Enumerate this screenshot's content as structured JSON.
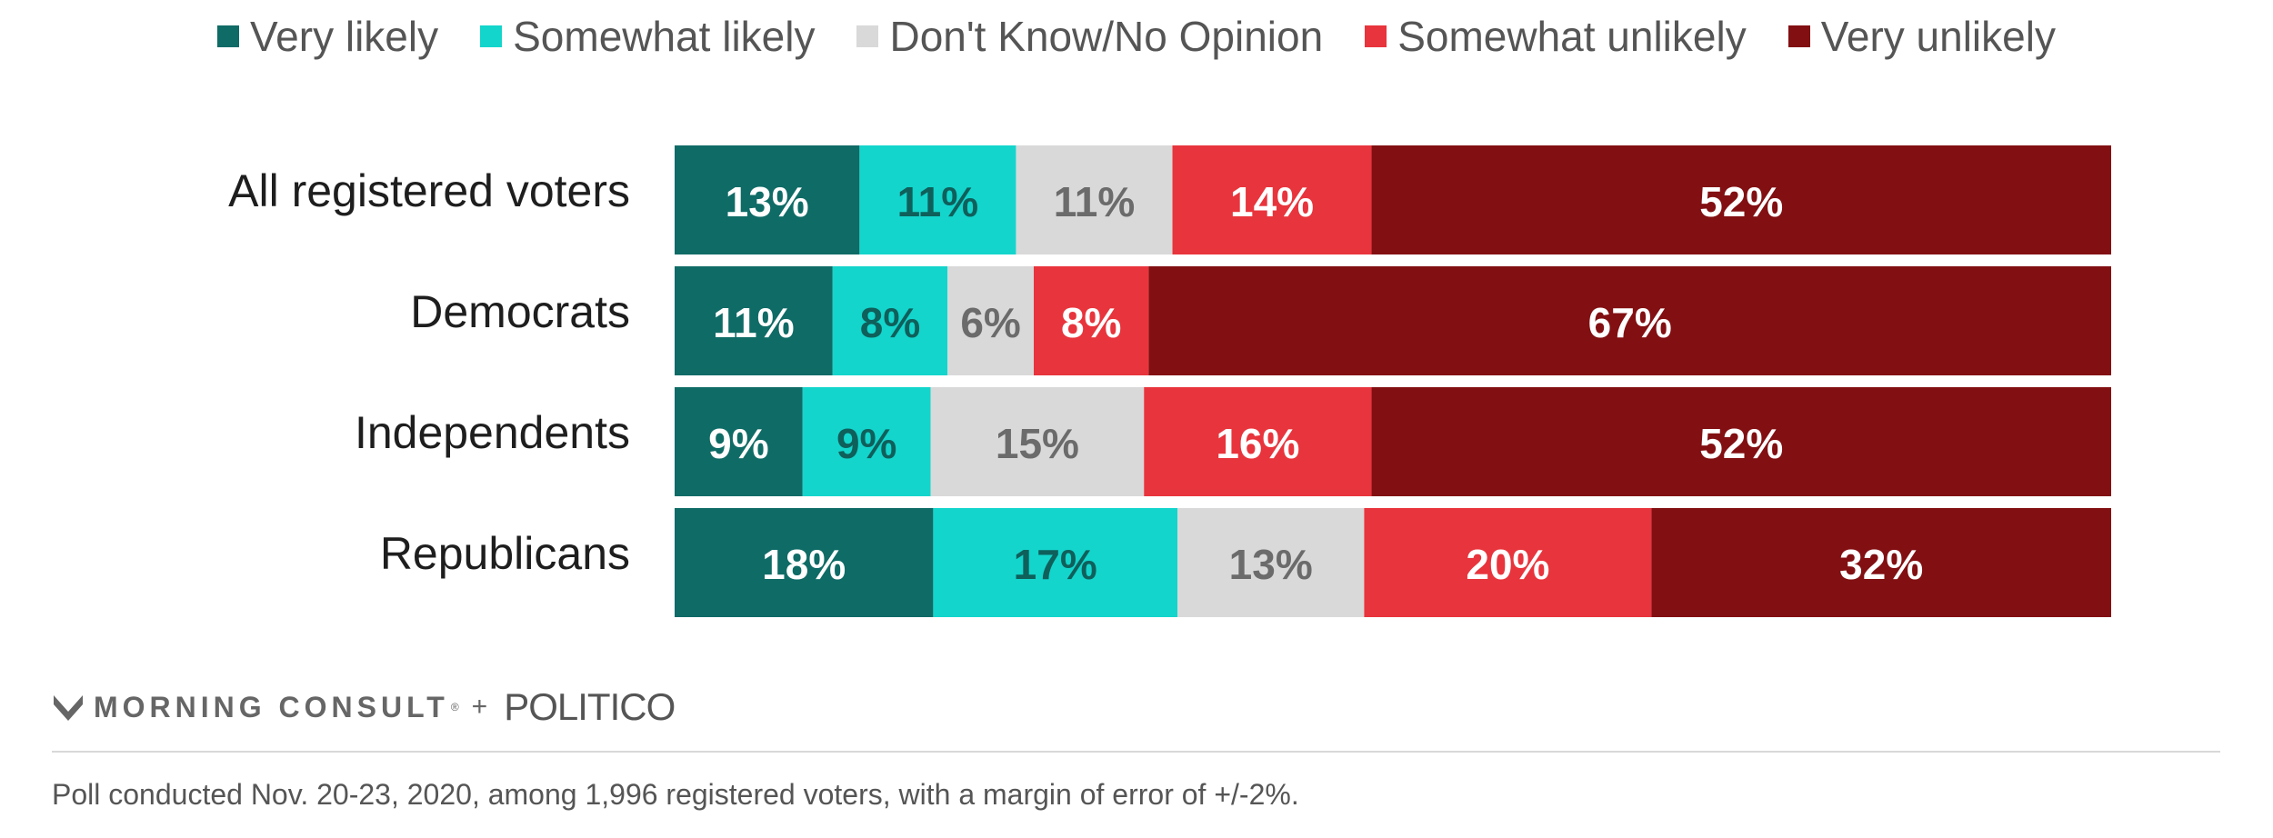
{
  "chart_data": {
    "type": "bar",
    "orientation": "horizontal",
    "stacked": true,
    "categories": [
      "All registered voters",
      "Democrats",
      "Independents",
      "Republicans"
    ],
    "series": [
      {
        "name": "Very likely",
        "color": "#0f6b66",
        "label_color": "#ffffff",
        "values": [
          13,
          11,
          9,
          18
        ]
      },
      {
        "name": "Somewhat likely",
        "color": "#13d5cc",
        "label_color": "#0f5f5b",
        "values": [
          11,
          8,
          9,
          17
        ]
      },
      {
        "name": "Don't Know/No Opinion",
        "color": "#d9d9d9",
        "label_color": "#6b6b6b",
        "values": [
          11,
          6,
          15,
          13
        ]
      },
      {
        "name": "Somewhat unlikely",
        "color": "#e8343c",
        "label_color": "#ffffff",
        "values": [
          14,
          8,
          16,
          20
        ]
      },
      {
        "name": "Very unlikely",
        "color": "#820f12",
        "label_color": "#ffffff",
        "values": [
          52,
          67,
          52,
          32
        ]
      }
    ],
    "value_suffix": "%",
    "legend_position": "top",
    "grid": false
  },
  "branding": {
    "logo_icon": "morning-consult-m-icon",
    "morning_consult": "MORNING CONSULT",
    "registered_mark": "®",
    "plus": "+",
    "politico": "POLITICO"
  },
  "footnote": "Poll conducted Nov. 20-23, 2020, among 1,996 registered voters, with a margin of error of +/-2%."
}
